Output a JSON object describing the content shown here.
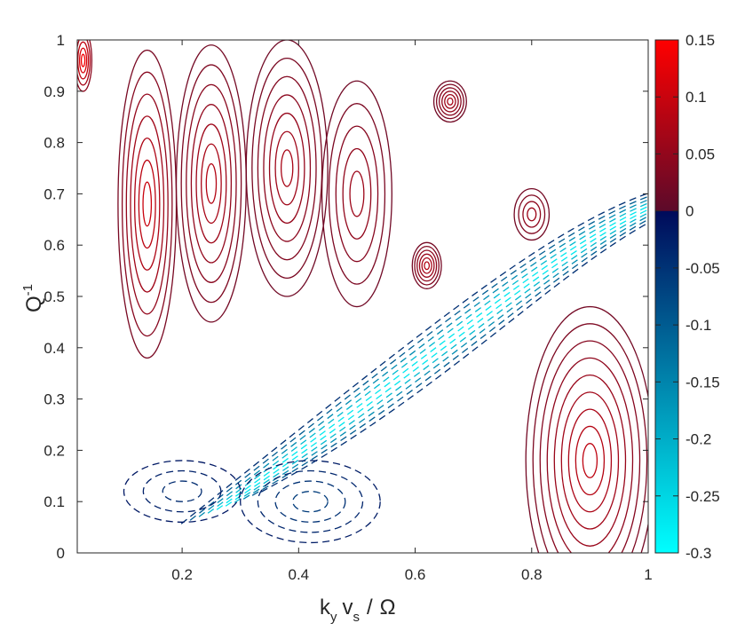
{
  "chart_data": {
    "type": "contour",
    "xlabel": {
      "base_k": "k",
      "sub_k": "y",
      "base_v": "v",
      "sub_v": "s",
      "slash": "/",
      "omega": "Ω"
    },
    "ylabel": {
      "base": "Q",
      "sup": "-1"
    },
    "xlim": [
      0.02,
      1.0
    ],
    "ylim": [
      0,
      1
    ],
    "xticks": [
      0.2,
      0.4,
      0.6,
      0.8,
      1
    ],
    "xtick_labels": [
      "0.2",
      "0.4",
      "0.6",
      "0.8",
      "1"
    ],
    "yticks": [
      0,
      0.1,
      0.2,
      0.3,
      0.4,
      0.5,
      0.6,
      0.7,
      0.8,
      0.9,
      1
    ],
    "ytick_labels": [
      "0",
      "0.1",
      "0.2",
      "0.3",
      "0.4",
      "0.5",
      "0.6",
      "0.7",
      "0.8",
      "0.9",
      "1"
    ],
    "colorbar": {
      "range": [
        -0.3,
        0.15
      ],
      "ticks": [
        0.15,
        0.1,
        0.05,
        0,
        -0.05,
        -0.1,
        -0.15,
        -0.2,
        -0.25,
        -0.3
      ],
      "tick_labels": [
        "0.15",
        "0.1",
        "0.05",
        "0",
        "-0.05",
        "-0.1",
        "-0.15",
        "-0.2",
        "-0.25",
        "-0.3"
      ],
      "colors": {
        "max": "#ff0000",
        "zero_pos": "#5c0a2a",
        "zero_neg": "#000a5a",
        "min": "#00ffff"
      }
    },
    "positive_contour_style": "solid",
    "negative_contour_style": "dashed",
    "grid": false,
    "features": [
      {
        "sign": "positive",
        "kind": "closed",
        "level_max": 0.08,
        "levels": 6,
        "cx": 0.62,
        "cy": 0.56,
        "rx": 0.025,
        "ry": 0.045
      },
      {
        "sign": "positive",
        "kind": "closed",
        "level_max": 0.07,
        "levels": 6,
        "cx": 0.66,
        "cy": 0.88,
        "rx": 0.028,
        "ry": 0.04
      },
      {
        "sign": "positive",
        "kind": "closed",
        "level_max": 0.06,
        "levels": 4,
        "cx": 0.8,
        "cy": 0.66,
        "rx": 0.03,
        "ry": 0.05
      },
      {
        "sign": "positive",
        "kind": "closed",
        "level_max": 0.09,
        "levels": 9,
        "cx": 0.9,
        "cy": 0.18,
        "rx": 0.11,
        "ry": 0.3
      },
      {
        "sign": "positive",
        "kind": "closed",
        "level_max": 0.06,
        "levels": 5,
        "cx": 0.5,
        "cy": 0.7,
        "rx": 0.06,
        "ry": 0.22
      },
      {
        "sign": "positive",
        "kind": "closed",
        "level_max": 0.07,
        "levels": 7,
        "cx": 0.38,
        "cy": 0.75,
        "rx": 0.07,
        "ry": 0.25
      },
      {
        "sign": "positive",
        "kind": "closed",
        "level_max": 0.08,
        "levels": 7,
        "cx": 0.25,
        "cy": 0.72,
        "rx": 0.06,
        "ry": 0.27
      },
      {
        "sign": "positive",
        "kind": "closed",
        "level_max": 0.1,
        "levels": 7,
        "cx": 0.14,
        "cy": 0.68,
        "rx": 0.05,
        "ry": 0.3
      },
      {
        "sign": "positive",
        "kind": "closed",
        "level_max": 0.14,
        "levels": 5,
        "cx": 0.03,
        "cy": 0.96,
        "rx": 0.015,
        "ry": 0.06
      },
      {
        "sign": "negative",
        "kind": "band",
        "level_min": -0.3,
        "levels": 10,
        "from": [
          0.45,
          0.33
        ],
        "to": [
          1.0,
          0.68
        ]
      },
      {
        "sign": "negative",
        "kind": "closed",
        "level_min": -0.06,
        "levels": 4,
        "cx": 0.42,
        "cy": 0.1,
        "rx": 0.12,
        "ry": 0.08
      },
      {
        "sign": "negative",
        "kind": "closed",
        "level_min": -0.04,
        "levels": 3,
        "cx": 0.2,
        "cy": 0.12,
        "rx": 0.1,
        "ry": 0.06
      }
    ]
  }
}
